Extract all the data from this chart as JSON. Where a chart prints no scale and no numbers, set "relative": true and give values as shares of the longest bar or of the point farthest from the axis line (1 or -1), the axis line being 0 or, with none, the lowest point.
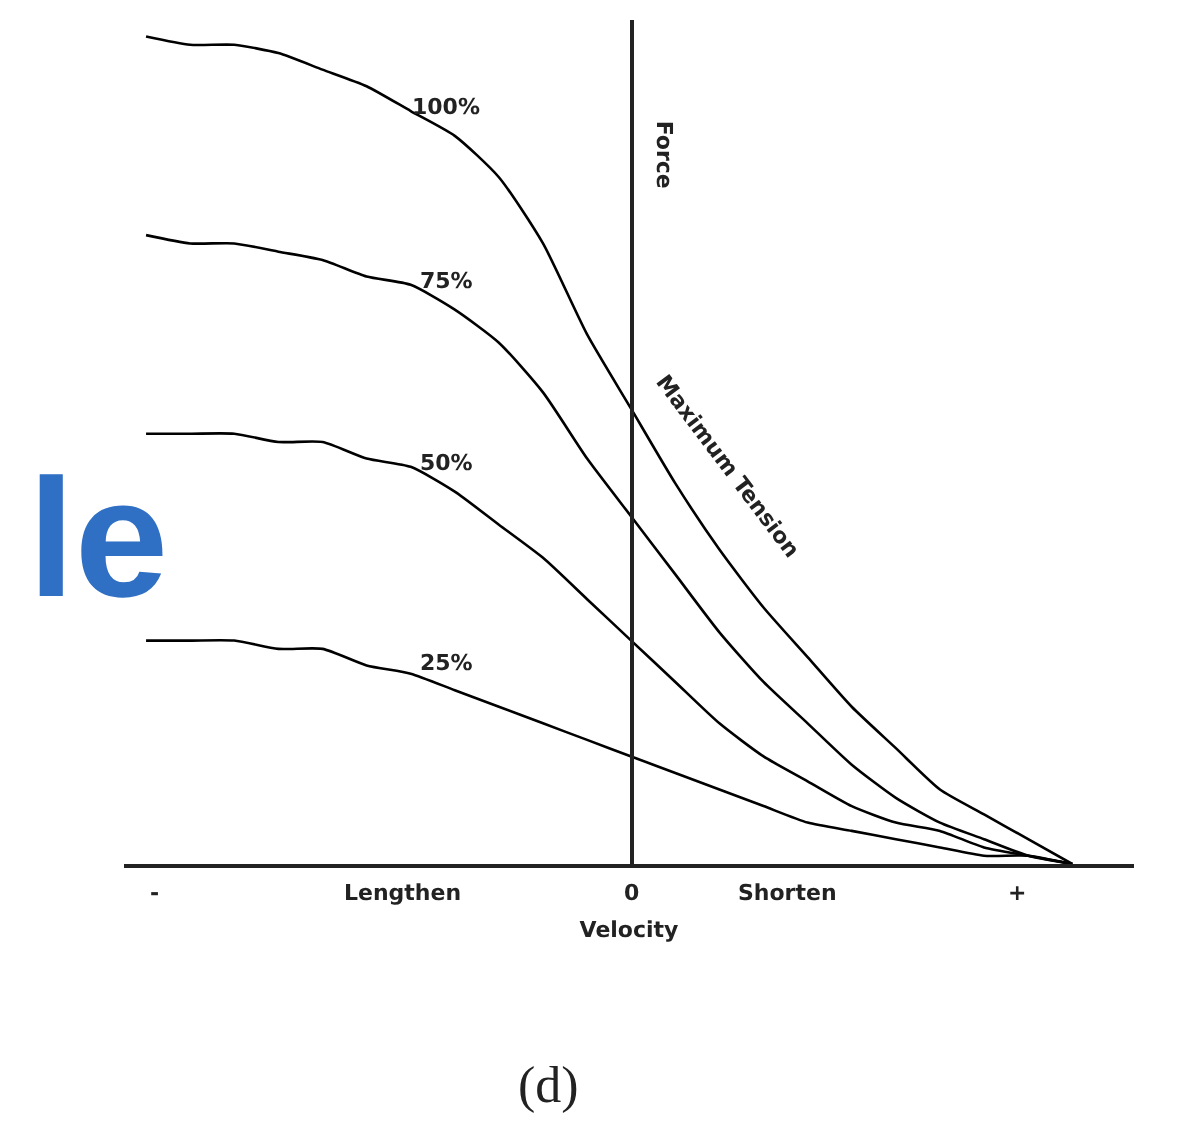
{
  "chart_data": {
    "type": "line",
    "relative": true,
    "xlabel": "Velocity",
    "ylabel": "Force",
    "categories": [
      null,
      null,
      null,
      null,
      null,
      null,
      null,
      null,
      null,
      null,
      null,
      null,
      null,
      null,
      null,
      null,
      null,
      null,
      null,
      null,
      null,
      null
    ],
    "marker": "none",
    "line_style": "solid",
    "grid": false,
    "legend": false,
    "series": [
      {
        "name": "100%",
        "color": "#000000",
        "values": [
          1,
          0.99,
          0.99,
          0.98,
          0.96,
          0.94,
          0.91,
          0.88,
          0.83,
          0.75,
          0.64,
          0.55,
          0.46,
          0.38,
          0.31,
          0.25,
          0.19,
          0.14,
          0.09,
          0.06,
          0.03,
          0
        ]
      },
      {
        "name": "75%",
        "color": "#000000",
        "values": [
          0.76,
          0.75,
          0.75,
          0.74,
          0.73,
          0.71,
          0.7,
          0.67,
          0.63,
          0.57,
          0.49,
          0.42,
          0.35,
          0.28,
          0.22,
          0.17,
          0.12,
          0.08,
          0.05,
          0.03,
          0.01,
          0
        ]
      },
      {
        "name": "50%",
        "color": "#000000",
        "values": [
          0.52,
          0.52,
          0.52,
          0.51,
          0.51,
          0.49,
          0.48,
          0.45,
          0.41,
          0.37,
          0.32,
          0.27,
          0.22,
          0.17,
          0.13,
          0.1,
          0.07,
          0.05,
          0.04,
          0.02,
          0.01,
          0
        ]
      },
      {
        "name": "25%",
        "color": "#000000",
        "values": [
          0.27,
          0.27,
          0.27,
          0.26,
          0.26,
          0.24,
          0.23,
          0.21,
          0.19,
          0.17,
          0.15,
          0.13,
          0.11,
          0.09,
          0.07,
          0.05,
          0.04,
          0.03,
          0.02,
          0.01,
          0.01,
          0
        ]
      }
    ],
    "annotations": [
      "-",
      "Lengthen",
      "0",
      "Shorten",
      "+",
      "Maximum Tension",
      "(d)",
      "le"
    ]
  }
}
